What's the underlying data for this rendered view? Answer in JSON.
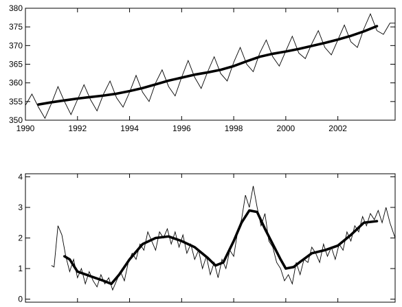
{
  "chart_data": [
    {
      "type": "line",
      "title": "",
      "xlabel": "",
      "ylabel": "",
      "xlim": [
        1990,
        2004.2
      ],
      "ylim": [
        350,
        380
      ],
      "x_ticks": [
        1990,
        1992,
        1994,
        1996,
        1998,
        2000,
        2002
      ],
      "y_ticks": [
        350,
        355,
        360,
        365,
        370,
        375,
        380
      ],
      "grid": false,
      "series": [
        {
          "style": "thin",
          "x": [
            1990.0,
            1990.25,
            1990.5,
            1990.75,
            1991.0,
            1991.25,
            1991.5,
            1991.75,
            1992.0,
            1992.25,
            1992.5,
            1992.75,
            1993.0,
            1993.25,
            1993.5,
            1993.75,
            1994.0,
            1994.25,
            1994.5,
            1994.75,
            1995.0,
            1995.25,
            1995.5,
            1995.75,
            1996.0,
            1996.25,
            1996.5,
            1996.75,
            1997.0,
            1997.25,
            1997.5,
            1997.75,
            1998.0,
            1998.25,
            1998.5,
            1998.75,
            1999.0,
            1999.25,
            1999.5,
            1999.75,
            2000.0,
            2000.25,
            2000.5,
            2000.75,
            2001.0,
            2001.25,
            2001.5,
            2001.75,
            2002.0,
            2002.25,
            2002.5,
            2002.75,
            2003.0,
            2003.25,
            2003.5,
            2003.75,
            2004.0,
            2004.2
          ],
          "y": [
            354.0,
            357.0,
            353.5,
            350.5,
            354.5,
            359.0,
            355.0,
            351.5,
            355.5,
            359.5,
            355.5,
            352.5,
            357.0,
            360.5,
            356.0,
            353.5,
            357.5,
            362.0,
            357.5,
            355.0,
            360.0,
            363.5,
            359.0,
            356.5,
            361.5,
            366.0,
            361.5,
            358.5,
            363.0,
            367.0,
            362.5,
            360.5,
            365.5,
            369.5,
            365.0,
            363.0,
            368.0,
            371.5,
            367.0,
            364.5,
            368.5,
            372.5,
            368.0,
            366.5,
            370.5,
            374.0,
            369.5,
            367.5,
            371.5,
            375.5,
            371.0,
            369.5,
            374.5,
            378.5,
            374.0,
            373.0,
            376.0,
            376.0
          ]
        },
        {
          "style": "thick",
          "x": [
            1990.5,
            1991.0,
            1991.5,
            1992.0,
            1992.5,
            1993.0,
            1993.5,
            1994.0,
            1994.5,
            1995.0,
            1995.5,
            1996.0,
            1996.5,
            1997.0,
            1997.5,
            1998.0,
            1998.5,
            1999.0,
            1999.5,
            2000.0,
            2000.5,
            2001.0,
            2001.5,
            2002.0,
            2002.5,
            2003.0,
            2003.5
          ],
          "y": [
            354.2,
            354.8,
            355.3,
            355.8,
            356.2,
            356.6,
            357.1,
            357.8,
            358.6,
            359.6,
            360.6,
            361.4,
            362.2,
            362.8,
            363.5,
            364.5,
            365.8,
            367.0,
            367.8,
            368.4,
            369.1,
            369.9,
            370.7,
            371.6,
            372.6,
            373.8,
            375.2
          ]
        }
      ]
    },
    {
      "type": "line",
      "title": "",
      "xlabel": "",
      "ylabel": "",
      "xlim": [
        1990,
        2004.2
      ],
      "ylim": [
        -0.1,
        4.1
      ],
      "x_ticks": [
        1990,
        1992,
        1994,
        1996,
        1998,
        2000,
        2002
      ],
      "y_ticks": [
        0,
        1,
        2,
        3,
        4
      ],
      "grid": false,
      "series": [
        {
          "style": "thin",
          "x": [
            1991.0,
            1991.1,
            1991.25,
            1991.4,
            1991.55,
            1991.7,
            1991.85,
            1992.0,
            1992.15,
            1992.3,
            1992.45,
            1992.6,
            1992.75,
            1992.9,
            1993.05,
            1993.2,
            1993.35,
            1993.5,
            1993.65,
            1993.8,
            1993.95,
            1994.1,
            1994.25,
            1994.4,
            1994.55,
            1994.7,
            1994.85,
            1995.0,
            1995.15,
            1995.3,
            1995.45,
            1995.6,
            1995.75,
            1995.9,
            1996.05,
            1996.2,
            1996.35,
            1996.5,
            1996.65,
            1996.8,
            1996.95,
            1997.1,
            1997.25,
            1997.4,
            1997.55,
            1997.7,
            1997.85,
            1998.0,
            1998.15,
            1998.3,
            1998.45,
            1998.6,
            1998.75,
            1998.9,
            1999.05,
            1999.2,
            1999.35,
            1999.5,
            1999.65,
            1999.8,
            1999.95,
            2000.1,
            2000.25,
            2000.4,
            2000.55,
            2000.7,
            2000.85,
            2001.0,
            2001.15,
            2001.3,
            2001.45,
            2001.6,
            2001.75,
            2001.9,
            2002.05,
            2002.2,
            2002.35,
            2002.5,
            2002.65,
            2002.8,
            2002.95,
            2003.1,
            2003.25,
            2003.4,
            2003.55,
            2003.7,
            2003.85,
            2004.0,
            2004.2
          ],
          "y": [
            1.1,
            1.05,
            2.4,
            2.1,
            1.4,
            0.9,
            1.3,
            0.7,
            1.0,
            0.5,
            0.9,
            0.6,
            0.4,
            0.8,
            0.5,
            0.7,
            0.3,
            0.6,
            0.9,
            0.6,
            1.2,
            1.5,
            1.3,
            1.8,
            1.6,
            2.2,
            1.9,
            1.6,
            2.2,
            2.0,
            2.3,
            1.8,
            2.2,
            1.7,
            2.1,
            1.5,
            1.8,
            1.3,
            1.6,
            1.0,
            1.4,
            0.8,
            1.2,
            0.7,
            1.3,
            1.0,
            1.6,
            1.4,
            2.2,
            2.6,
            3.4,
            3.0,
            3.7,
            3.0,
            2.4,
            2.8,
            1.9,
            1.7,
            1.2,
            1.0,
            0.6,
            0.8,
            0.5,
            1.2,
            0.8,
            1.3,
            1.2,
            1.7,
            1.5,
            1.2,
            1.8,
            1.4,
            1.7,
            1.3,
            1.8,
            1.6,
            2.2,
            1.9,
            2.4,
            2.2,
            2.7,
            2.4,
            2.8,
            2.6,
            2.9,
            2.5,
            3.0,
            2.5,
            2.0
          ]
        },
        {
          "style": "thick",
          "x": [
            1991.5,
            1991.7,
            1992.0,
            1992.5,
            1993.0,
            1993.3,
            1993.6,
            1994.0,
            1994.5,
            1995.0,
            1995.5,
            1996.0,
            1996.5,
            1997.0,
            1997.3,
            1997.6,
            1998.0,
            1998.3,
            1998.6,
            1998.9,
            1999.2,
            1999.5,
            1999.8,
            2000.0,
            2000.3,
            2000.6,
            2001.0,
            2001.5,
            2002.0,
            2002.5,
            2003.0,
            2003.5
          ],
          "y": [
            1.4,
            1.3,
            0.9,
            0.75,
            0.6,
            0.5,
            0.8,
            1.3,
            1.8,
            2.0,
            2.05,
            1.9,
            1.7,
            1.35,
            1.1,
            1.2,
            1.9,
            2.5,
            2.9,
            2.85,
            2.3,
            1.8,
            1.3,
            1.0,
            1.05,
            1.25,
            1.5,
            1.6,
            1.75,
            2.1,
            2.5,
            2.55
          ]
        }
      ]
    }
  ]
}
